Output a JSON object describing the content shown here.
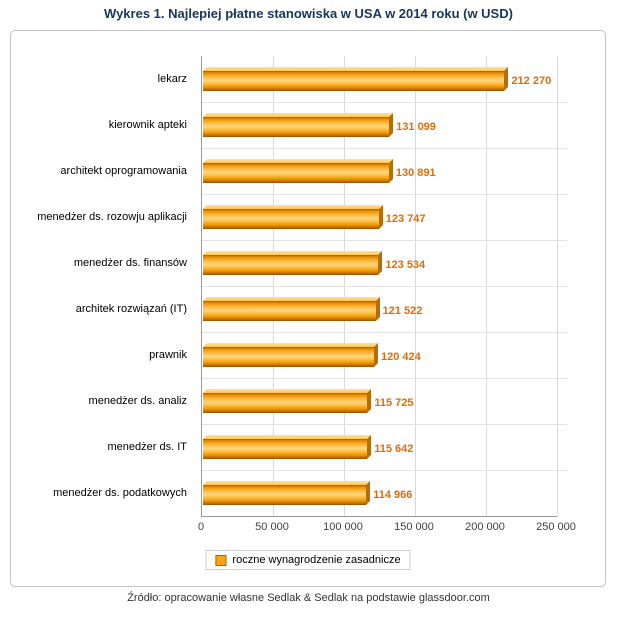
{
  "page": {
    "title": "Wykres 1. Najlepiej płatne stanowiska w USA w 2014 roku (w USD)",
    "source": "Źródło: opracowanie własne Sedlak & Sedlak na podstawie glassdoor.com"
  },
  "legend": {
    "label": "roczne wynagrodzenie zasadnicze",
    "swatch_color": "#FFA415"
  },
  "colors": {
    "title": "#17365D",
    "bar": "#FFA415",
    "value_label": "#E26B0A",
    "gridline": "#D9D9D9"
  },
  "chart_data": {
    "type": "bar",
    "orientation": "horizontal",
    "title": "Wykres 1. Najlepiej płatne stanowiska w USA w 2014 roku (w USD)",
    "series_name": "roczne wynagrodzenie zasadnicze",
    "categories": [
      "lekarz",
      "kierownik apteki",
      "architekt oprogramowania",
      "menedżer ds. rozowju aplikacji",
      "menedżer ds. finansów",
      "architek rozwiązań  (IT)",
      "prawnik",
      "menedżer ds. analiz",
      "menedżer ds. IT",
      "menedżer ds. podatkowych"
    ],
    "values": [
      212270,
      131099,
      130891,
      123747,
      123534,
      121522,
      120424,
      115725,
      115642,
      114966
    ],
    "value_labels": [
      "212 270",
      "131 099",
      "130 891",
      "123 747",
      "123 534",
      "121 522",
      "120 424",
      "115 725",
      "115 642",
      "114 966"
    ],
    "xlim": [
      0,
      250000
    ],
    "xticks": [
      0,
      50000,
      100000,
      150000,
      200000,
      250000
    ],
    "xtick_labels": [
      "0",
      "50 000",
      "100 000",
      "150 000",
      "200 000",
      "250 000"
    ],
    "grid": "vertical",
    "legend_position": "bottom"
  }
}
